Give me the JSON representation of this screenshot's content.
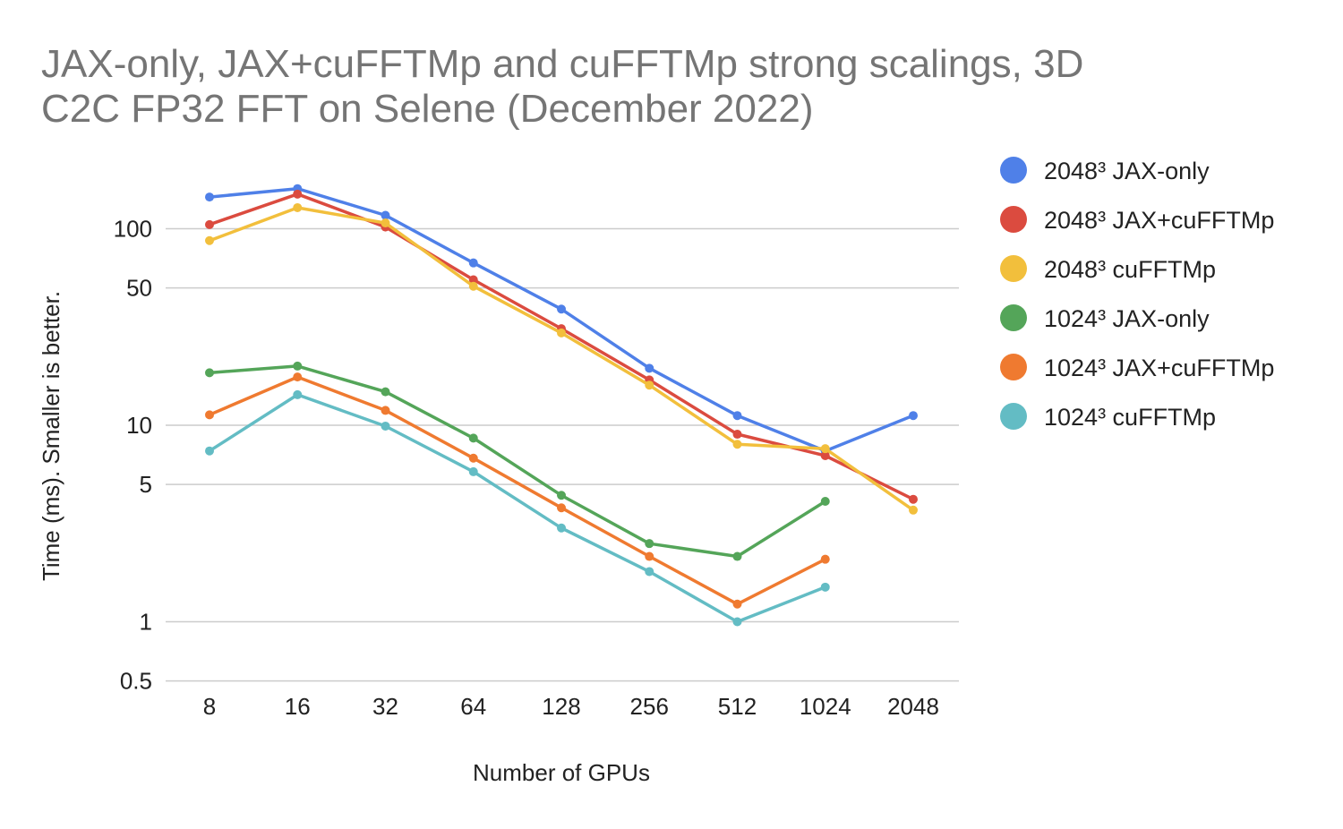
{
  "chart_data": {
    "type": "line",
    "title_lines": [
      "JAX-only, JAX+cuFFTMp and cuFFTMp strong scalings, 3D",
      "C2C FP32 FFT on Selene (December 2022)"
    ],
    "xlabel": "Number of GPUs",
    "ylabel": "Time (ms). Smaller is better.",
    "y_scale": "log",
    "ylim": [
      0.5,
      200
    ],
    "y_ticks": [
      {
        "value": 0.5,
        "label": "0.5"
      },
      {
        "value": 1,
        "label": "1"
      },
      {
        "value": 5,
        "label": "5"
      },
      {
        "value": 10,
        "label": "10"
      },
      {
        "value": 50,
        "label": "50"
      },
      {
        "value": 100,
        "label": "100"
      }
    ],
    "categories": [
      "8",
      "16",
      "32",
      "64",
      "128",
      "256",
      "512",
      "1024",
      "2048"
    ],
    "grid": true,
    "legend_position": "right",
    "series": [
      {
        "name": "2048³ JAX-only",
        "color": "#4f80e8",
        "values": [
          145,
          160,
          117,
          67,
          39,
          19.5,
          11.2,
          7.4,
          11.2
        ]
      },
      {
        "name": "2048³ JAX+cuFFTMp",
        "color": "#db4b3f",
        "values": [
          105,
          150,
          102,
          55,
          31,
          17,
          9,
          7,
          4.2
        ]
      },
      {
        "name": "2048³ cuFFTMp",
        "color": "#f2bf3c",
        "values": [
          87,
          128,
          107,
          51,
          29.5,
          16,
          8,
          7.6,
          3.7
        ]
      },
      {
        "name": "1024³ JAX-only",
        "color": "#54a559",
        "values": [
          18.5,
          20,
          14.8,
          8.6,
          4.4,
          2.5,
          2.15,
          4.1,
          null
        ]
      },
      {
        "name": "1024³ JAX+cuFFTMp",
        "color": "#ef7a30",
        "values": [
          11.3,
          17.6,
          11.9,
          6.8,
          3.8,
          2.15,
          1.23,
          2.08,
          null
        ]
      },
      {
        "name": "1024³ cuFFTMp",
        "color": "#63bcc4",
        "values": [
          7.4,
          14.3,
          9.9,
          5.8,
          3.0,
          1.8,
          1.0,
          1.5,
          null
        ]
      }
    ]
  }
}
